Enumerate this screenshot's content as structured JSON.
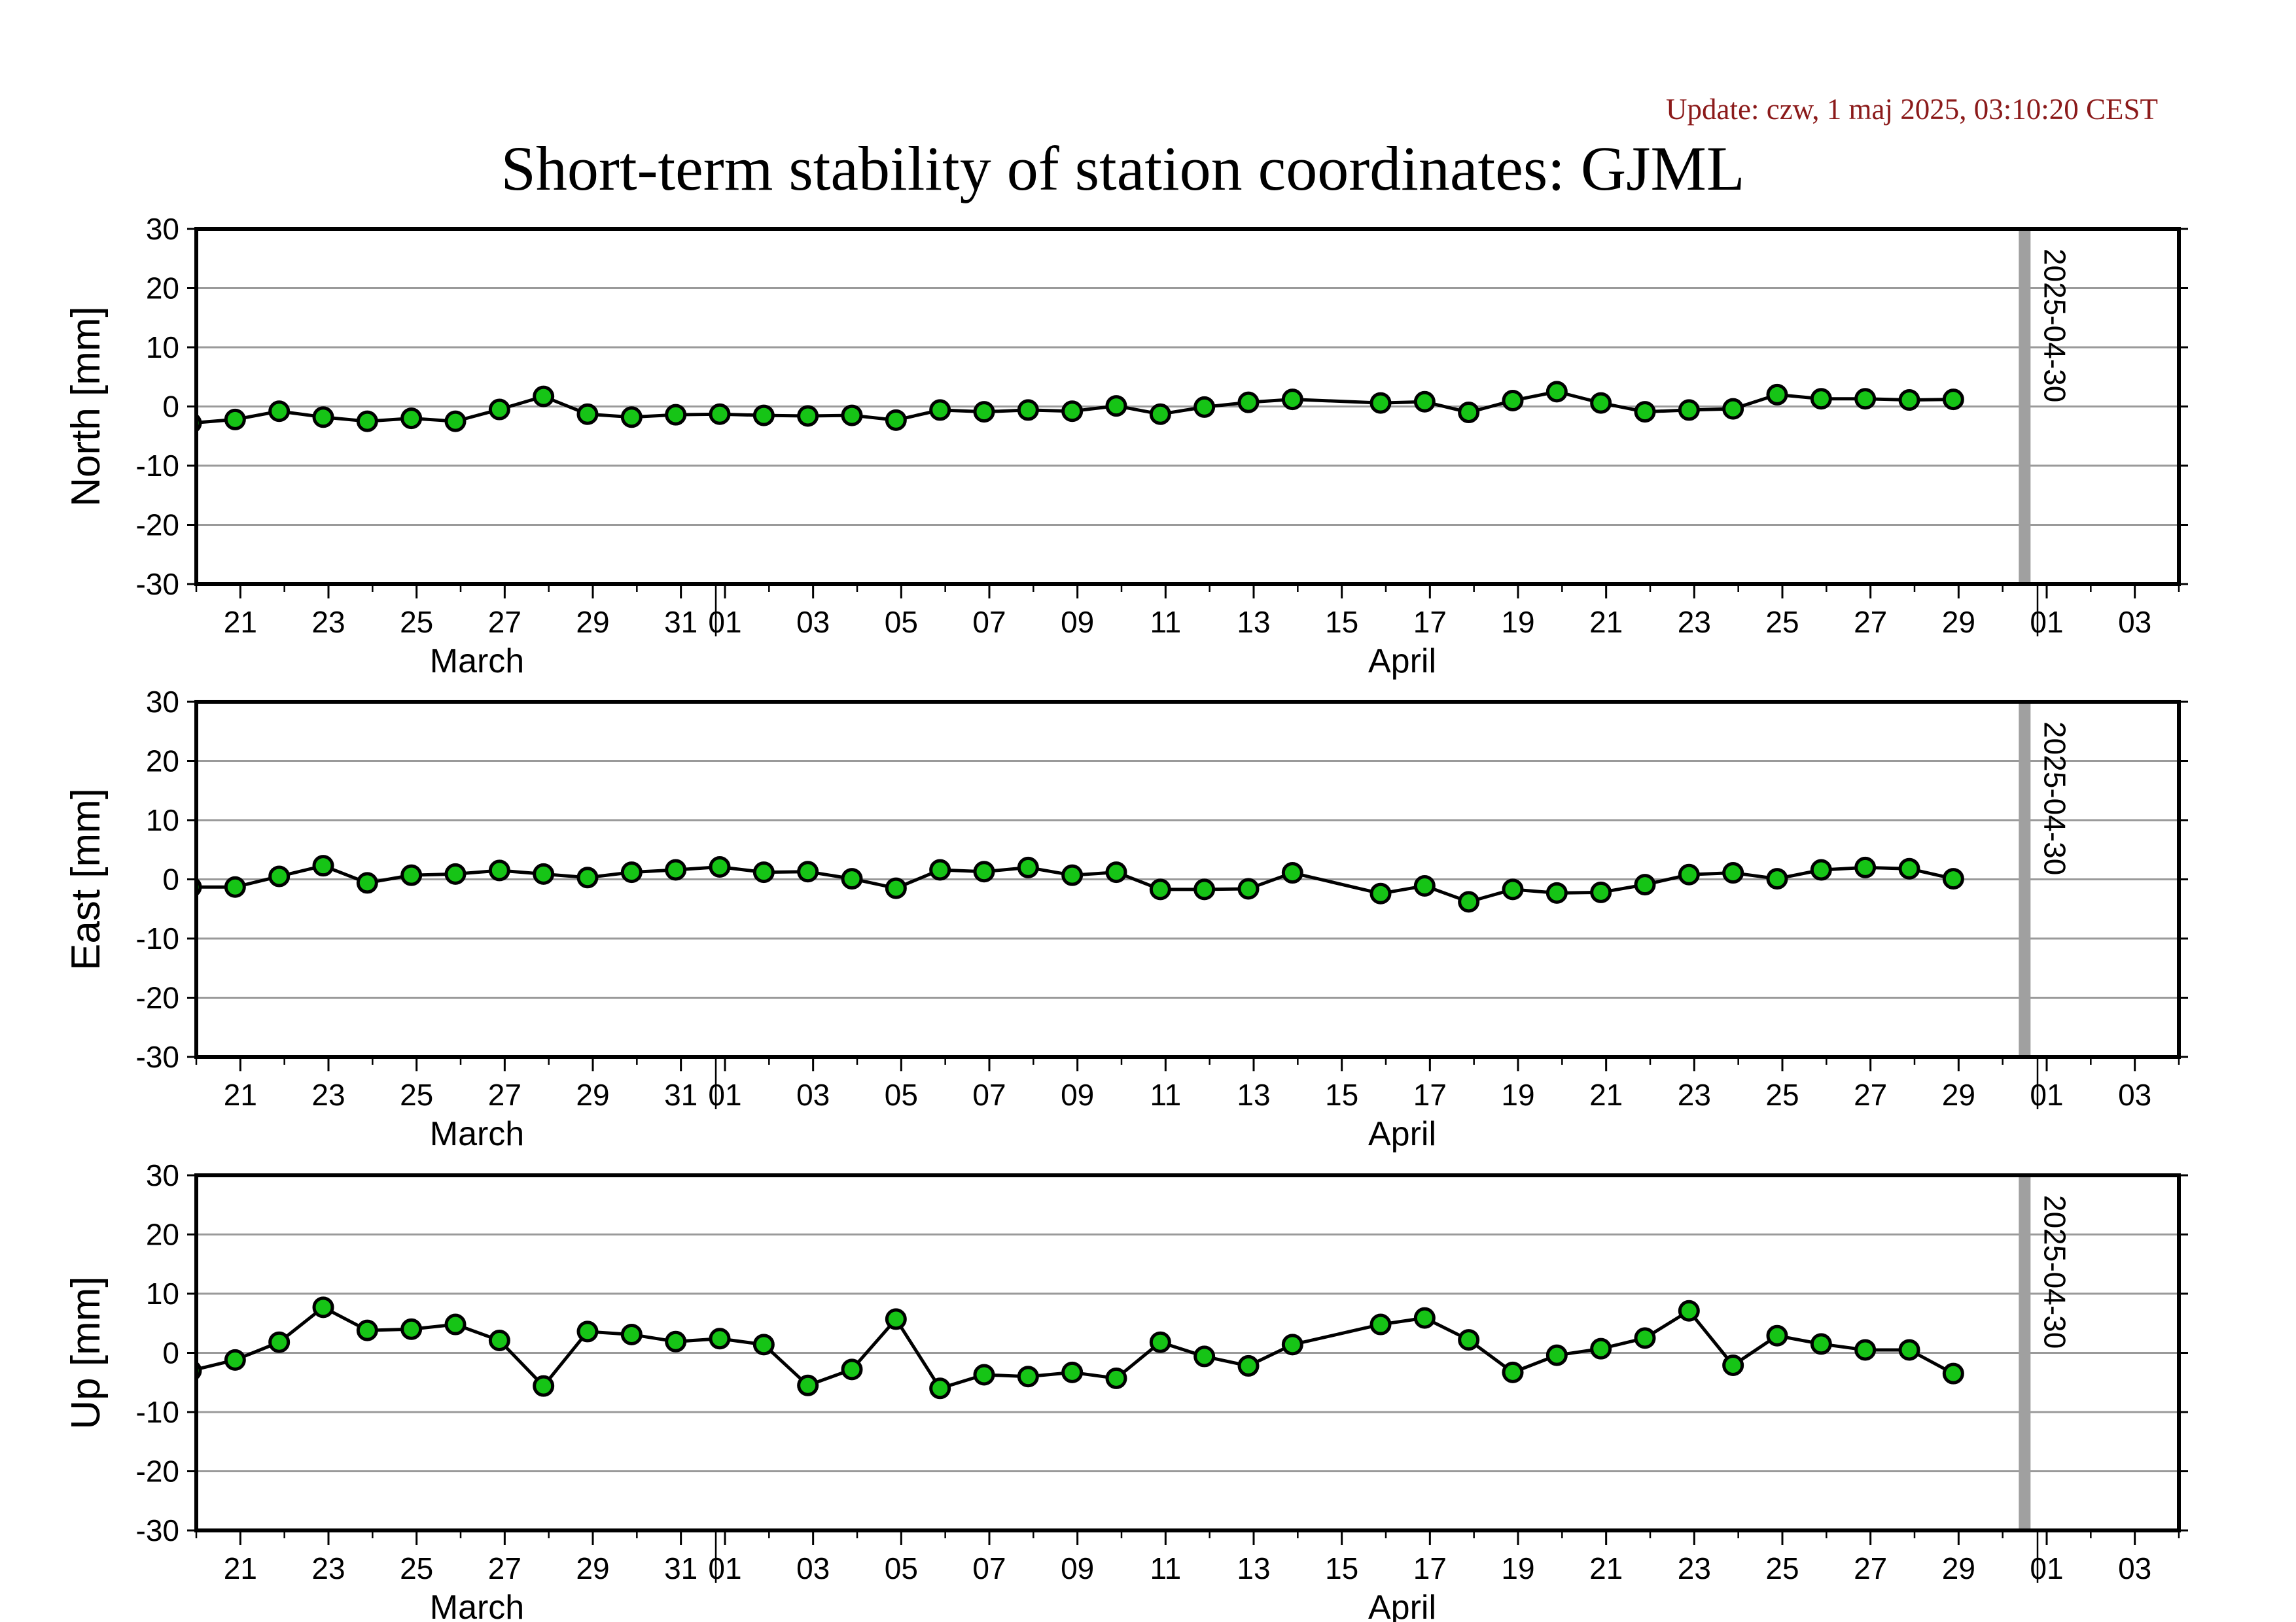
{
  "update_text": "Update: czw, 1 maj 2025, 03:10:20 CEST",
  "title": "Short-term stability of station coordinates: GJML",
  "colors": {
    "marker_fill": "#16c416",
    "marker_edge": "#000000",
    "line": "#000000",
    "grid": "#9a9a9a",
    "date_bar": "#a0a0a0",
    "update_text": "#8b1a1a"
  },
  "chart_data": [
    {
      "type": "line",
      "ylabel": "North [mm]",
      "ylim": [
        -30,
        30
      ],
      "yticks": [
        30,
        20,
        10,
        0,
        -10,
        -20,
        -30
      ],
      "xlim": [
        "2025-03-20",
        "2025-05-04"
      ],
      "xtick_labels": [
        "21",
        "23",
        "25",
        "27",
        "29",
        "31",
        "01",
        "03",
        "05",
        "07",
        "09",
        "11",
        "13",
        "15",
        "17",
        "19",
        "21",
        "23",
        "25",
        "27",
        "29",
        "01",
        "03"
      ],
      "month_labels": [
        "March",
        "April"
      ],
      "grid": "horizontal",
      "marker_date_label": "2025-04-30",
      "x": [
        "2025-03-20",
        "2025-03-21",
        "2025-03-22",
        "2025-03-23",
        "2025-03-24",
        "2025-03-25",
        "2025-03-26",
        "2025-03-27",
        "2025-03-28",
        "2025-03-29",
        "2025-03-30",
        "2025-03-31",
        "2025-04-01",
        "2025-04-02",
        "2025-04-03",
        "2025-04-04",
        "2025-04-05",
        "2025-04-06",
        "2025-04-07",
        "2025-04-08",
        "2025-04-09",
        "2025-04-10",
        "2025-04-11",
        "2025-04-12",
        "2025-04-13",
        "2025-04-14",
        "2025-04-16",
        "2025-04-17",
        "2025-04-18",
        "2025-04-19",
        "2025-04-20",
        "2025-04-21",
        "2025-04-22",
        "2025-04-23",
        "2025-04-24",
        "2025-04-25",
        "2025-04-26",
        "2025-04-27",
        "2025-04-28",
        "2025-04-29"
      ],
      "y": [
        -2.8,
        -2.2,
        -0.8,
        -1.8,
        -2.5,
        -2.0,
        -2.5,
        -0.5,
        1.7,
        -1.3,
        -1.8,
        -1.4,
        -1.3,
        -1.5,
        -1.6,
        -1.5,
        -2.3,
        -0.6,
        -0.9,
        -0.6,
        -0.8,
        0.1,
        -1.3,
        -0.1,
        0.7,
        1.2,
        0.6,
        0.8,
        -1.0,
        1.0,
        2.5,
        0.6,
        -0.9,
        -0.6,
        -0.4,
        2.0,
        1.3,
        1.3,
        1.1,
        1.2
      ]
    },
    {
      "type": "line",
      "ylabel": "East [mm]",
      "ylim": [
        -30,
        30
      ],
      "yticks": [
        30,
        20,
        10,
        0,
        -10,
        -20,
        -30
      ],
      "xlim": [
        "2025-03-20",
        "2025-05-04"
      ],
      "xtick_labels": [
        "21",
        "23",
        "25",
        "27",
        "29",
        "31",
        "01",
        "03",
        "05",
        "07",
        "09",
        "11",
        "13",
        "15",
        "17",
        "19",
        "21",
        "23",
        "25",
        "27",
        "29",
        "01",
        "03"
      ],
      "month_labels": [
        "March",
        "April"
      ],
      "grid": "horizontal",
      "marker_date_label": "2025-04-30",
      "x": [
        "2025-03-20",
        "2025-03-21",
        "2025-03-22",
        "2025-03-23",
        "2025-03-24",
        "2025-03-25",
        "2025-03-26",
        "2025-03-27",
        "2025-03-28",
        "2025-03-29",
        "2025-03-30",
        "2025-03-31",
        "2025-04-01",
        "2025-04-02",
        "2025-04-03",
        "2025-04-04",
        "2025-04-05",
        "2025-04-06",
        "2025-04-07",
        "2025-04-08",
        "2025-04-09",
        "2025-04-10",
        "2025-04-11",
        "2025-04-12",
        "2025-04-13",
        "2025-04-14",
        "2025-04-16",
        "2025-04-17",
        "2025-04-18",
        "2025-04-19",
        "2025-04-20",
        "2025-04-21",
        "2025-04-22",
        "2025-04-23",
        "2025-04-24",
        "2025-04-25",
        "2025-04-26",
        "2025-04-27",
        "2025-04-28",
        "2025-04-29"
      ],
      "y": [
        -1.3,
        -1.3,
        0.5,
        2.3,
        -0.6,
        0.7,
        0.9,
        1.5,
        0.9,
        0.3,
        1.2,
        1.6,
        2.1,
        1.2,
        1.3,
        0.1,
        -1.5,
        1.6,
        1.3,
        2.0,
        0.7,
        1.2,
        -1.7,
        -1.7,
        -1.6,
        1.1,
        -2.4,
        -1.1,
        -3.8,
        -1.7,
        -2.3,
        -2.2,
        -0.9,
        0.8,
        1.1,
        0.1,
        1.6,
        2.0,
        1.8,
        0.1
      ]
    },
    {
      "type": "line",
      "ylabel": "Up [mm]",
      "ylim": [
        -30,
        30
      ],
      "yticks": [
        30,
        20,
        10,
        0,
        -10,
        -20,
        -30
      ],
      "xlim": [
        "2025-03-20",
        "2025-05-04"
      ],
      "xtick_labels": [
        "21",
        "23",
        "25",
        "27",
        "29",
        "31",
        "01",
        "03",
        "05",
        "07",
        "09",
        "11",
        "13",
        "15",
        "17",
        "19",
        "21",
        "23",
        "25",
        "27",
        "29",
        "01",
        "03"
      ],
      "month_labels": [
        "March",
        "April"
      ],
      "grid": "horizontal",
      "marker_date_label": "2025-04-30",
      "x": [
        "2025-03-20",
        "2025-03-21",
        "2025-03-22",
        "2025-03-23",
        "2025-03-24",
        "2025-03-25",
        "2025-03-26",
        "2025-03-27",
        "2025-03-28",
        "2025-03-29",
        "2025-03-30",
        "2025-03-31",
        "2025-04-01",
        "2025-04-02",
        "2025-04-03",
        "2025-04-04",
        "2025-04-05",
        "2025-04-06",
        "2025-04-07",
        "2025-04-08",
        "2025-04-09",
        "2025-04-10",
        "2025-04-11",
        "2025-04-12",
        "2025-04-13",
        "2025-04-14",
        "2025-04-16",
        "2025-04-17",
        "2025-04-18",
        "2025-04-19",
        "2025-04-20",
        "2025-04-21",
        "2025-04-22",
        "2025-04-23",
        "2025-04-24",
        "2025-04-25",
        "2025-04-26",
        "2025-04-27",
        "2025-04-28",
        "2025-04-29"
      ],
      "y": [
        -3.0,
        -1.2,
        1.8,
        7.7,
        3.8,
        4.0,
        4.8,
        2.1,
        -5.6,
        3.6,
        3.1,
        1.9,
        2.4,
        1.4,
        -5.5,
        -2.8,
        5.7,
        -6.0,
        -3.7,
        -4.0,
        -3.3,
        -4.3,
        1.8,
        -0.6,
        -2.2,
        1.4,
        4.8,
        5.9,
        2.2,
        -3.3,
        -0.4,
        0.7,
        2.5,
        7.1,
        -2.1,
        2.9,
        1.5,
        0.5,
        0.5,
        -3.5
      ]
    }
  ]
}
